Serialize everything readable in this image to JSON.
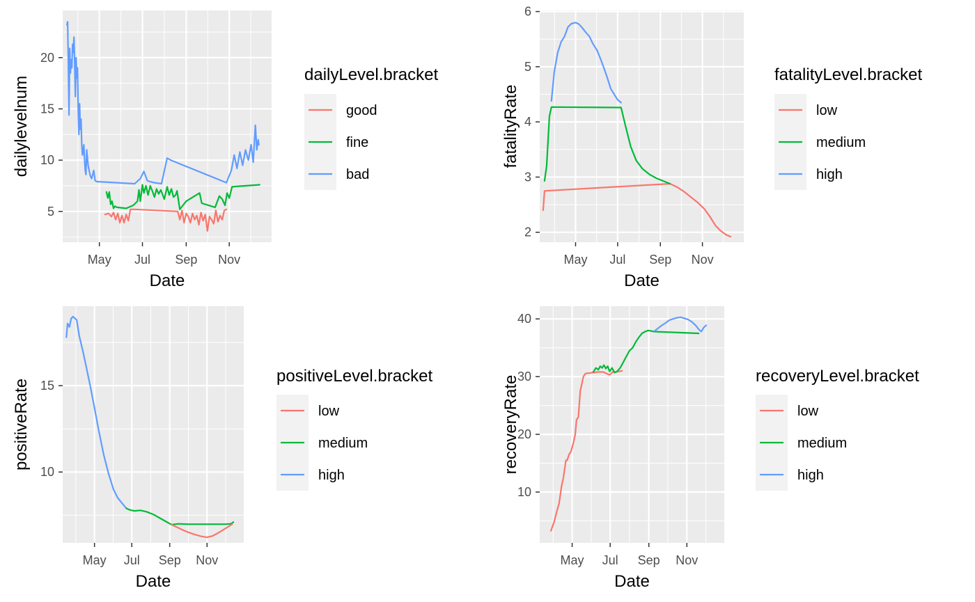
{
  "chart_data": [
    {
      "type": "line",
      "xlabel": "Date",
      "ylabel": "dailylevelnum",
      "xlim": [
        "2020-03-10",
        "2020-12-31"
      ],
      "ylim": [
        2.0,
        24.6
      ],
      "x_ticks": [
        {
          "date": "2020-05-01",
          "label": "May"
        },
        {
          "date": "2020-07-01",
          "label": "Jul"
        },
        {
          "date": "2020-09-01",
          "label": "Sep"
        },
        {
          "date": "2020-11-01",
          "label": "Nov"
        }
      ],
      "y_ticks": [
        5,
        10,
        15,
        20
      ],
      "legend": {
        "title": "dailyLevel.bracket",
        "placement": "right",
        "entries": [
          "good",
          "fine",
          "bad"
        ]
      },
      "series": [
        {
          "name": "bad",
          "color": "#619CFF",
          "x": [
            "2020-03-16",
            "2020-03-17",
            "2020-03-18",
            "2020-03-19",
            "2020-03-20",
            "2020-03-21",
            "2020-03-22",
            "2020-03-23",
            "2020-03-24",
            "2020-03-25",
            "2020-03-26",
            "2020-03-27",
            "2020-03-28",
            "2020-03-29",
            "2020-03-30",
            "2020-03-31",
            "2020-04-01",
            "2020-04-02",
            "2020-04-03",
            "2020-04-04",
            "2020-04-05",
            "2020-04-06",
            "2020-04-07",
            "2020-04-08",
            "2020-04-09",
            "2020-04-10",
            "2020-04-11",
            "2020-04-12",
            "2020-04-13",
            "2020-04-15",
            "2020-04-18",
            "2020-04-20",
            "2020-04-23",
            "2020-04-25",
            "2020-04-28",
            "2020-05-01",
            "2020-06-20",
            "2020-06-28",
            "2020-07-03",
            "2020-07-08",
            "2020-07-12",
            "2020-07-18",
            "2020-07-28",
            "2020-08-05",
            "2020-08-10",
            "2020-10-28",
            "2020-11-04",
            "2020-11-08",
            "2020-11-12",
            "2020-11-16",
            "2020-11-20",
            "2020-11-24",
            "2020-11-28",
            "2020-12-02",
            "2020-12-05",
            "2020-12-08",
            "2020-12-10",
            "2020-12-12",
            "2020-12-13"
          ],
          "y": [
            23.2,
            23.5,
            19.5,
            14.4,
            20.9,
            18.5,
            19.8,
            19.0,
            21.3,
            20.5,
            22.0,
            19.5,
            16.2,
            20.0,
            18.0,
            19.0,
            15.0,
            12.5,
            15.5,
            13.0,
            14.0,
            11.5,
            10.5,
            11.0,
            11.5,
            10.0,
            9.0,
            8.6,
            11.0,
            9.5,
            8.5,
            8.2,
            9.0,
            8.0,
            7.9,
            7.9,
            7.7,
            8.2,
            8.9,
            8.0,
            7.9,
            7.8,
            7.7,
            10.2,
            10.0,
            7.8,
            9.0,
            10.5,
            9.2,
            10.8,
            9.5,
            11.0,
            10.0,
            11.5,
            9.8,
            13.4,
            11.0,
            12.0,
            11.5
          ]
        },
        {
          "name": "fine",
          "color": "#00BA38",
          "x": [
            "2020-05-11",
            "2020-05-13",
            "2020-05-15",
            "2020-05-17",
            "2020-05-19",
            "2020-05-21",
            "2020-05-23",
            "2020-05-26",
            "2020-06-08",
            "2020-06-18",
            "2020-06-24",
            "2020-06-26",
            "2020-06-28",
            "2020-07-01",
            "2020-07-03",
            "2020-07-06",
            "2020-07-09",
            "2020-07-12",
            "2020-07-15",
            "2020-07-18",
            "2020-07-21",
            "2020-07-24",
            "2020-07-27",
            "2020-08-01",
            "2020-08-05",
            "2020-08-08",
            "2020-08-11",
            "2020-08-14",
            "2020-08-17",
            "2020-08-19",
            "2020-08-23",
            "2020-09-01",
            "2020-09-20",
            "2020-09-23",
            "2020-10-12",
            "2020-10-18",
            "2020-10-22",
            "2020-10-26",
            "2020-10-29",
            "2020-11-01",
            "2020-11-05",
            "2020-12-14"
          ],
          "y": [
            6.9,
            6.3,
            6.9,
            5.7,
            6.0,
            5.3,
            5.5,
            5.4,
            5.3,
            5.6,
            6.0,
            7.1,
            6.0,
            7.6,
            6.8,
            7.5,
            6.6,
            7.5,
            7.0,
            6.4,
            7.2,
            6.7,
            7.1,
            6.2,
            7.4,
            6.6,
            7.2,
            6.4,
            6.6,
            7.0,
            5.2,
            6.0,
            6.8,
            5.8,
            5.4,
            6.5,
            6.2,
            5.6,
            6.8,
            6.3,
            7.4,
            7.6
          ]
        },
        {
          "name": "good",
          "color": "#F8766D",
          "x": [
            "2020-05-09",
            "2020-05-14",
            "2020-05-18",
            "2020-05-21",
            "2020-05-24",
            "2020-05-27",
            "2020-05-30",
            "2020-06-02",
            "2020-06-05",
            "2020-06-08",
            "2020-06-11",
            "2020-06-14",
            "2020-06-20",
            "2020-08-20",
            "2020-08-23",
            "2020-08-26",
            "2020-08-29",
            "2020-09-01",
            "2020-09-04",
            "2020-09-07",
            "2020-09-10",
            "2020-09-13",
            "2020-09-16",
            "2020-09-19",
            "2020-09-22",
            "2020-09-25",
            "2020-09-28",
            "2020-10-01",
            "2020-10-04",
            "2020-10-07",
            "2020-10-10",
            "2020-10-13",
            "2020-10-16",
            "2020-10-19",
            "2020-10-22",
            "2020-10-25",
            "2020-10-28"
          ],
          "y": [
            4.7,
            4.8,
            4.5,
            4.9,
            4.2,
            4.8,
            3.9,
            4.6,
            3.9,
            4.7,
            4.1,
            5.2,
            5.2,
            5.0,
            4.2,
            5.1,
            3.9,
            4.8,
            4.5,
            3.9,
            4.8,
            4.2,
            4.6,
            3.7,
            4.9,
            4.1,
            4.7,
            3.1,
            4.5,
            4.2,
            3.8,
            5.1,
            4.0,
            4.6,
            4.2,
            5.1,
            5.2
          ]
        }
      ]
    },
    {
      "type": "line",
      "xlabel": "Date",
      "ylabel": "fatalityRate",
      "xlim": [
        "2020-03-10",
        "2020-12-31"
      ],
      "ylim": [
        1.82,
        6.02
      ],
      "x_ticks": [
        {
          "date": "2020-05-01",
          "label": "May"
        },
        {
          "date": "2020-07-01",
          "label": "Jul"
        },
        {
          "date": "2020-09-01",
          "label": "Sep"
        },
        {
          "date": "2020-11-01",
          "label": "Nov"
        }
      ],
      "y_ticks": [
        2,
        3,
        4,
        5,
        6
      ],
      "legend": {
        "title": "fatalityLevel.bracket",
        "placement": "right",
        "entries": [
          "low",
          "medium",
          "high"
        ]
      },
      "series": [
        {
          "name": "low",
          "color": "#F8766D",
          "x": [
            "2020-03-15",
            "2020-03-17",
            "2020-09-15",
            "2020-09-25",
            "2020-10-05",
            "2020-10-15",
            "2020-10-25",
            "2020-11-04",
            "2020-11-12",
            "2020-11-20",
            "2020-11-28",
            "2020-12-06",
            "2020-12-12"
          ],
          "y": [
            2.4,
            2.75,
            2.88,
            2.82,
            2.74,
            2.64,
            2.54,
            2.42,
            2.28,
            2.12,
            2.02,
            1.95,
            1.92
          ]
        },
        {
          "name": "medium",
          "color": "#00BA38",
          "x": [
            "2020-03-17",
            "2020-03-20",
            "2020-03-24",
            "2020-03-27",
            "2020-07-06",
            "2020-07-12",
            "2020-07-20",
            "2020-07-28",
            "2020-08-06",
            "2020-08-16",
            "2020-08-26",
            "2020-09-05",
            "2020-09-15"
          ],
          "y": [
            2.93,
            3.2,
            4.1,
            4.27,
            4.26,
            3.95,
            3.55,
            3.3,
            3.15,
            3.05,
            2.98,
            2.93,
            2.88
          ]
        },
        {
          "name": "high",
          "color": "#619CFF",
          "x": [
            "2020-03-27",
            "2020-03-31",
            "2020-04-05",
            "2020-04-10",
            "2020-04-15",
            "2020-04-20",
            "2020-04-25",
            "2020-05-01",
            "2020-05-06",
            "2020-05-11",
            "2020-05-16",
            "2020-05-21",
            "2020-05-26",
            "2020-06-01",
            "2020-06-06",
            "2020-06-11",
            "2020-06-16",
            "2020-06-21",
            "2020-06-26",
            "2020-07-01",
            "2020-07-06"
          ],
          "y": [
            4.38,
            4.9,
            5.25,
            5.45,
            5.55,
            5.72,
            5.78,
            5.8,
            5.77,
            5.7,
            5.62,
            5.55,
            5.42,
            5.3,
            5.15,
            4.98,
            4.8,
            4.6,
            4.5,
            4.4,
            4.35
          ]
        }
      ]
    },
    {
      "type": "line",
      "xlabel": "Date",
      "ylabel": "positiveRate",
      "xlim": [
        "2020-03-10",
        "2020-12-31"
      ],
      "ylim": [
        5.9,
        19.6
      ],
      "x_ticks": [
        {
          "date": "2020-05-01",
          "label": "May"
        },
        {
          "date": "2020-07-01",
          "label": "Jul"
        },
        {
          "date": "2020-09-01",
          "label": "Sep"
        },
        {
          "date": "2020-11-01",
          "label": "Nov"
        }
      ],
      "y_ticks": [
        10,
        15
      ],
      "legend": {
        "title": "positiveLevel.bracket",
        "placement": "right",
        "entries": [
          "low",
          "medium",
          "high"
        ]
      },
      "series": [
        {
          "name": "high",
          "color": "#619CFF",
          "x": [
            "2020-03-16",
            "2020-03-18",
            "2020-03-21",
            "2020-03-24",
            "2020-03-27",
            "2020-03-30",
            "2020-04-02",
            "2020-04-06",
            "2020-04-12",
            "2020-04-18",
            "2020-04-24",
            "2020-04-30",
            "2020-05-08",
            "2020-05-16",
            "2020-05-24",
            "2020-06-01",
            "2020-06-08",
            "2020-06-15",
            "2020-06-22"
          ],
          "y": [
            17.8,
            18.6,
            18.4,
            18.9,
            19.0,
            18.9,
            18.8,
            17.9,
            17.0,
            16.0,
            15.0,
            13.9,
            12.4,
            11.0,
            9.9,
            9.0,
            8.5,
            8.2,
            7.9
          ]
        },
        {
          "name": "medium",
          "color": "#00BA38",
          "x": [
            "2020-06-22",
            "2020-06-28",
            "2020-07-05",
            "2020-07-15",
            "2020-07-25",
            "2020-08-05",
            "2020-08-15",
            "2020-08-25",
            "2020-09-04",
            "2020-09-15",
            "2020-10-01",
            "2020-11-01",
            "2020-12-01",
            "2020-12-10",
            "2020-12-14"
          ],
          "y": [
            7.9,
            7.8,
            7.75,
            7.78,
            7.7,
            7.55,
            7.35,
            7.15,
            6.95,
            7.0,
            6.98,
            6.98,
            6.98,
            7.0,
            7.1
          ]
        },
        {
          "name": "low",
          "color": "#F8766D",
          "x": [
            "2020-09-04",
            "2020-09-12",
            "2020-09-22",
            "2020-10-02",
            "2020-10-12",
            "2020-10-22",
            "2020-11-01",
            "2020-11-10",
            "2020-11-18",
            "2020-11-26",
            "2020-12-04",
            "2020-12-12"
          ],
          "y": [
            6.95,
            6.82,
            6.65,
            6.5,
            6.38,
            6.28,
            6.22,
            6.3,
            6.45,
            6.62,
            6.8,
            6.98
          ]
        }
      ]
    },
    {
      "type": "line",
      "xlabel": "Date",
      "ylabel": "recoveryRate",
      "xlim": [
        "2020-03-10",
        "2020-12-31"
      ],
      "ylim": [
        1.2,
        42.2
      ],
      "x_ticks": [
        {
          "date": "2020-05-01",
          "label": "May"
        },
        {
          "date": "2020-07-01",
          "label": "Jul"
        },
        {
          "date": "2020-09-01",
          "label": "Sep"
        },
        {
          "date": "2020-11-01",
          "label": "Nov"
        }
      ],
      "y_ticks": [
        10,
        20,
        30,
        40
      ],
      "legend": {
        "title": "recoveryLevel.bracket",
        "placement": "right",
        "entries": [
          "low",
          "medium",
          "high"
        ]
      },
      "series": [
        {
          "name": "low",
          "color": "#F8766D",
          "x": [
            "2020-03-28",
            "2020-04-02",
            "2020-04-06",
            "2020-04-10",
            "2020-04-14",
            "2020-04-17",
            "2020-04-19",
            "2020-04-21",
            "2020-04-23",
            "2020-04-26",
            "2020-04-29",
            "2020-05-03",
            "2020-05-06",
            "2020-05-08",
            "2020-05-11",
            "2020-05-14",
            "2020-05-16",
            "2020-05-19",
            "2020-05-22",
            "2020-05-25",
            "2020-05-28",
            "2020-05-30",
            "2020-06-01",
            "2020-06-05",
            "2020-06-10",
            "2020-06-20",
            "2020-06-30",
            "2020-07-05",
            "2020-07-10",
            "2020-07-20"
          ],
          "y": [
            3.3,
            4.8,
            6.5,
            8.0,
            11.0,
            12.5,
            14.0,
            15.5,
            15.5,
            16.5,
            17.0,
            18.5,
            20.0,
            22.5,
            23.0,
            27.5,
            28.5,
            30.0,
            30.5,
            30.6,
            30.6,
            30.6,
            30.7,
            30.7,
            30.8,
            30.8,
            30.3,
            30.8,
            30.8,
            31.0
          ]
        },
        {
          "name": "medium",
          "color": "#00BA38",
          "x": [
            "2020-06-04",
            "2020-06-08",
            "2020-06-12",
            "2020-06-15",
            "2020-06-18",
            "2020-06-21",
            "2020-06-24",
            "2020-06-27",
            "2020-06-30",
            "2020-07-04",
            "2020-07-08",
            "2020-07-12",
            "2020-07-17",
            "2020-07-22",
            "2020-07-27",
            "2020-08-01",
            "2020-08-06",
            "2020-08-11",
            "2020-08-16",
            "2020-08-21",
            "2020-08-26",
            "2020-08-31",
            "2020-09-05",
            "2020-09-10",
            "2020-11-20"
          ],
          "y": [
            30.8,
            31.5,
            31.2,
            31.8,
            31.5,
            32.0,
            31.4,
            31.8,
            30.9,
            31.5,
            30.7,
            30.9,
            31.5,
            32.5,
            33.5,
            34.5,
            35.0,
            36.0,
            36.8,
            37.5,
            37.8,
            38.0,
            37.9,
            37.8,
            37.5
          ]
        },
        {
          "name": "high",
          "color": "#619CFF",
          "x": [
            "2020-09-10",
            "2020-09-16",
            "2020-09-22",
            "2020-09-28",
            "2020-10-04",
            "2020-10-10",
            "2020-10-16",
            "2020-10-22",
            "2020-10-28",
            "2020-11-03",
            "2020-11-09",
            "2020-11-15",
            "2020-11-20",
            "2020-11-24",
            "2020-11-28",
            "2020-12-02"
          ],
          "y": [
            37.9,
            38.4,
            38.9,
            39.3,
            39.8,
            40.0,
            40.2,
            40.3,
            40.1,
            39.9,
            39.5,
            38.9,
            38.2,
            37.8,
            38.5,
            38.9
          ]
        }
      ]
    }
  ]
}
